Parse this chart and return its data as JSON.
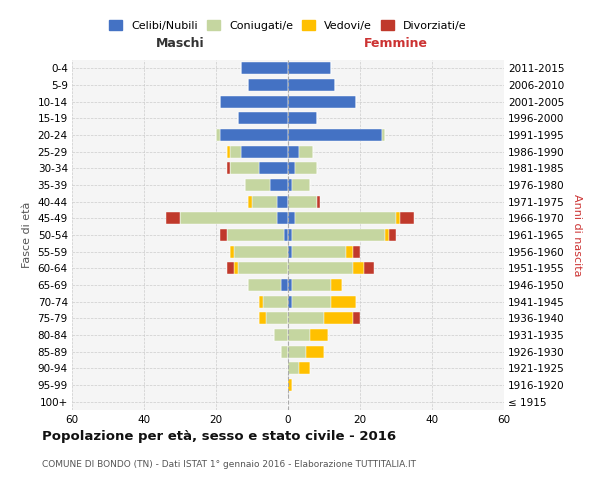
{
  "age_groups": [
    "100+",
    "95-99",
    "90-94",
    "85-89",
    "80-84",
    "75-79",
    "70-74",
    "65-69",
    "60-64",
    "55-59",
    "50-54",
    "45-49",
    "40-44",
    "35-39",
    "30-34",
    "25-29",
    "20-24",
    "15-19",
    "10-14",
    "5-9",
    "0-4"
  ],
  "birth_years": [
    "≤ 1915",
    "1916-1920",
    "1921-1925",
    "1926-1930",
    "1931-1935",
    "1936-1940",
    "1941-1945",
    "1946-1950",
    "1951-1955",
    "1956-1960",
    "1961-1965",
    "1966-1970",
    "1971-1975",
    "1976-1980",
    "1981-1985",
    "1986-1990",
    "1991-1995",
    "1996-2000",
    "2001-2005",
    "2006-2010",
    "2011-2015"
  ],
  "maschi": {
    "celibi": [
      0,
      0,
      0,
      0,
      0,
      0,
      0,
      2,
      0,
      0,
      1,
      3,
      3,
      5,
      8,
      13,
      19,
      14,
      19,
      11,
      13
    ],
    "coniugati": [
      0,
      0,
      0,
      2,
      4,
      6,
      7,
      9,
      14,
      15,
      16,
      27,
      7,
      7,
      8,
      3,
      1,
      0,
      0,
      0,
      0
    ],
    "vedovi": [
      0,
      0,
      0,
      0,
      0,
      2,
      1,
      0,
      1,
      1,
      0,
      0,
      1,
      0,
      0,
      1,
      0,
      0,
      0,
      0,
      0
    ],
    "divorziati": [
      0,
      0,
      0,
      0,
      0,
      0,
      0,
      0,
      2,
      0,
      2,
      4,
      0,
      0,
      1,
      0,
      0,
      0,
      0,
      0,
      0
    ]
  },
  "femmine": {
    "nubili": [
      0,
      0,
      0,
      0,
      0,
      0,
      1,
      1,
      0,
      1,
      1,
      2,
      0,
      1,
      2,
      3,
      26,
      8,
      19,
      13,
      12
    ],
    "coniugate": [
      0,
      0,
      3,
      5,
      6,
      10,
      11,
      11,
      18,
      15,
      26,
      28,
      8,
      5,
      6,
      4,
      1,
      0,
      0,
      0,
      0
    ],
    "vedove": [
      0,
      1,
      3,
      5,
      5,
      8,
      7,
      3,
      3,
      2,
      1,
      1,
      0,
      0,
      0,
      0,
      0,
      0,
      0,
      0,
      0
    ],
    "divorziate": [
      0,
      0,
      0,
      0,
      0,
      2,
      0,
      0,
      3,
      2,
      2,
      4,
      1,
      0,
      0,
      0,
      0,
      0,
      0,
      0,
      0
    ]
  },
  "colors": {
    "celibi": "#4472c4",
    "coniugati": "#c5d6a0",
    "vedovi": "#ffc000",
    "divorziati": "#c0392b"
  },
  "xlim": 60,
  "title": "Popolazione per età, sesso e stato civile - 2016",
  "subtitle": "COMUNE DI BONDO (TN) - Dati ISTAT 1° gennaio 2016 - Elaborazione TUTTITALIA.IT",
  "ylabel_left": "Fasce di età",
  "ylabel_right": "Anni di nascita",
  "label_maschi": "Maschi",
  "label_femmine": "Femmine",
  "legend_labels": [
    "Celibi/Nubili",
    "Coniugati/e",
    "Vedovi/e",
    "Divorziati/e"
  ],
  "bg_color": "#ffffff",
  "plot_bg": "#f5f5f5",
  "grid_color": "#cccccc"
}
